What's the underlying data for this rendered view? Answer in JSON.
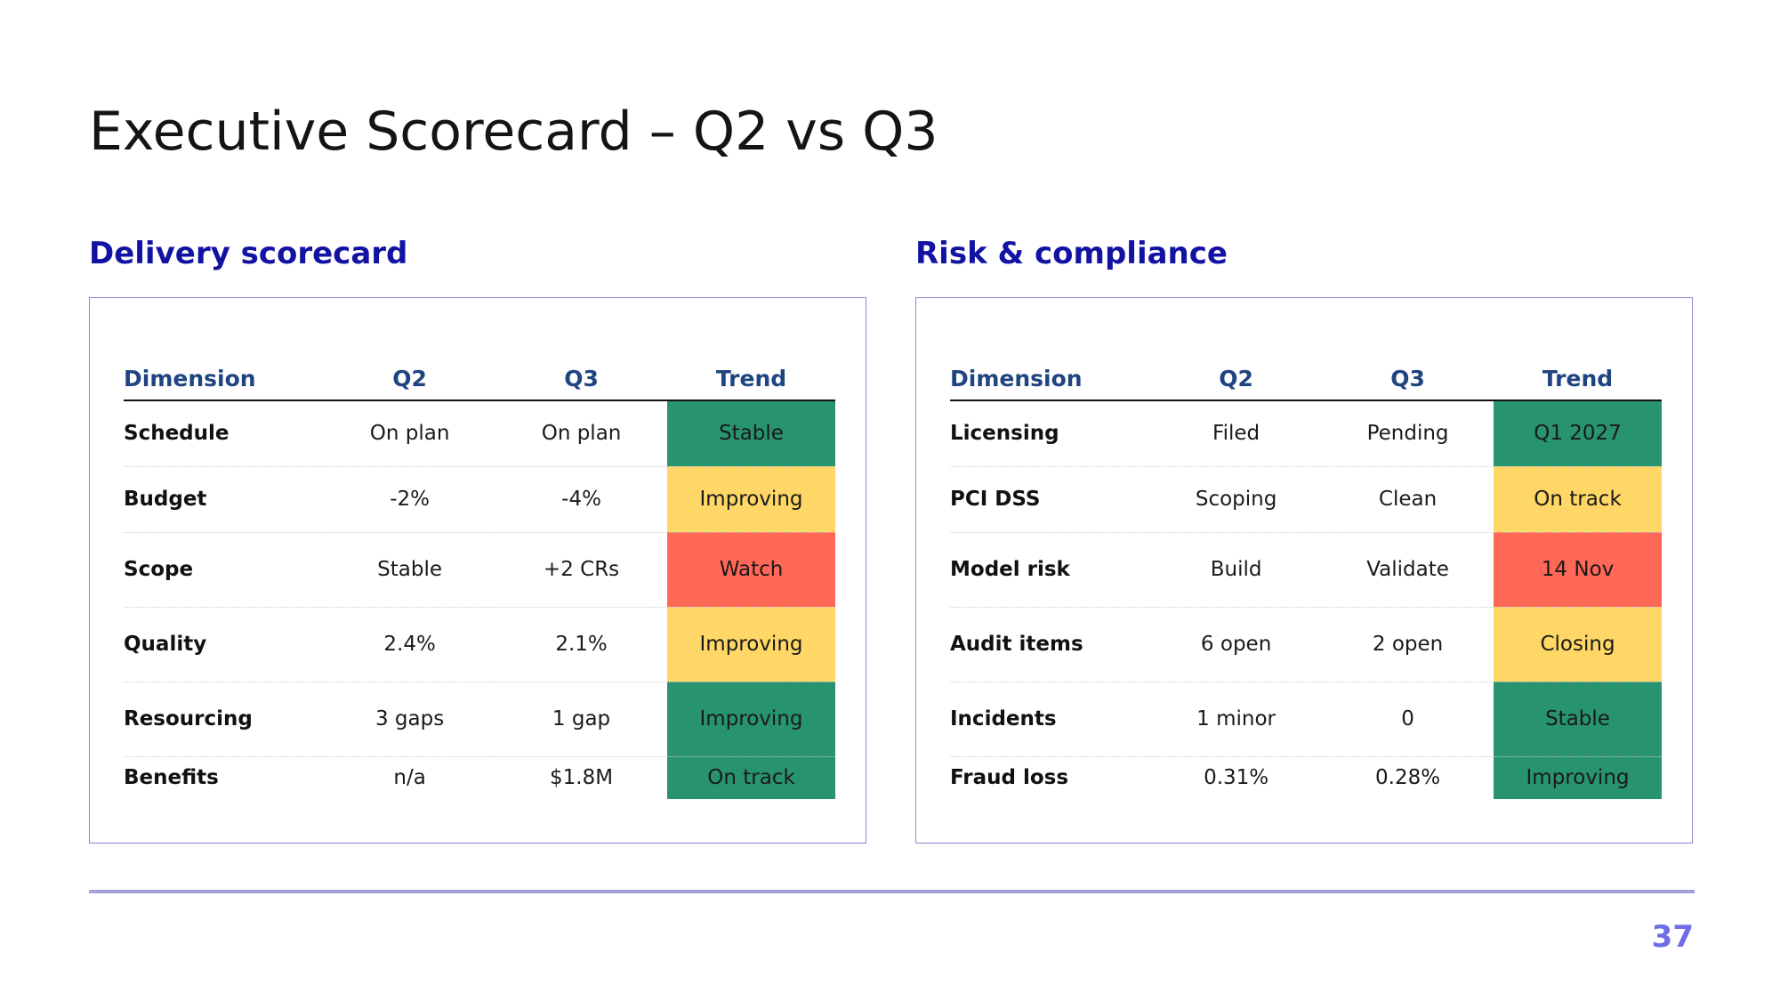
{
  "title": "Executive Scorecard – Q2 vs Q3",
  "page_number": "37",
  "colors": {
    "heading": "#1212a3",
    "column_header": "#1f4480",
    "green": "#279370",
    "amber": "#ffd766",
    "red": "#ff6756",
    "panel_border": "#8a88d4",
    "page_number": "#6f6ee8"
  },
  "sections": [
    {
      "heading": "Delivery scorecard",
      "headers": [
        "Dimension",
        "Q2",
        "Q3",
        "Trend"
      ],
      "rows": [
        {
          "dimension": "Schedule",
          "q2": "On plan",
          "q3": "On plan",
          "trend": "Stable",
          "status": "green"
        },
        {
          "dimension": "Budget",
          "q2": "-2%",
          "q3": "-4%",
          "trend": "Improving",
          "status": "amber"
        },
        {
          "dimension": "Scope",
          "q2": "Stable",
          "q3": "+2 CRs",
          "trend": "Watch",
          "status": "red"
        },
        {
          "dimension": "Quality",
          "q2": "2.4%",
          "q3": "2.1%",
          "trend": "Improving",
          "status": "amber"
        },
        {
          "dimension": "Resourcing",
          "q2": "3 gaps",
          "q3": "1 gap",
          "trend": "Improving",
          "status": "green"
        },
        {
          "dimension": "Benefits",
          "q2": "n/a",
          "q3": "$1.8M",
          "trend": "On track",
          "status": "green"
        }
      ]
    },
    {
      "heading": "Risk & compliance",
      "headers": [
        "Dimension",
        "Q2",
        "Q3",
        "Trend"
      ],
      "rows": [
        {
          "dimension": "Licensing",
          "q2": "Filed",
          "q3": "Pending",
          "trend": "Q1 2027",
          "status": "green"
        },
        {
          "dimension": "PCI DSS",
          "q2": "Scoping",
          "q3": "Clean",
          "trend": "On track",
          "status": "amber"
        },
        {
          "dimension": "Model risk",
          "q2": "Build",
          "q3": "Validate",
          "trend": "14 Nov",
          "status": "red"
        },
        {
          "dimension": "Audit items",
          "q2": "6 open",
          "q3": "2 open",
          "trend": "Closing",
          "status": "amber"
        },
        {
          "dimension": "Incidents",
          "q2": "1 minor",
          "q3": "0",
          "trend": "Stable",
          "status": "green"
        },
        {
          "dimension": "Fraud loss",
          "q2": "0.31%",
          "q3": "0.28%",
          "trend": "Improving",
          "status": "green"
        }
      ]
    }
  ]
}
